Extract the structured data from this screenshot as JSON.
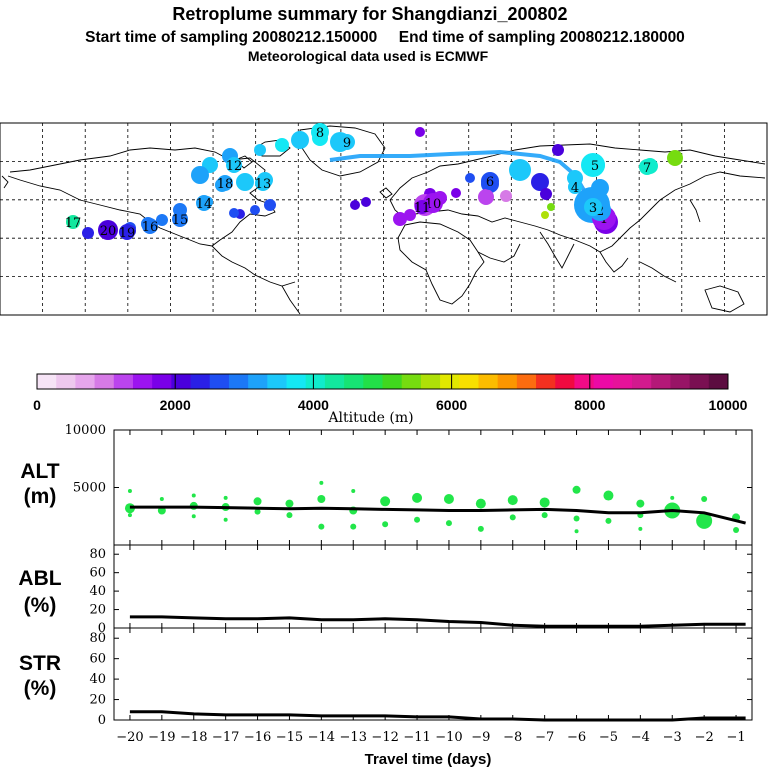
{
  "header": {
    "title": "Retroplume summary for Shangdianzi_200802",
    "sampling_line": "Start time of sampling 20080212.150000     End time of sampling 20080212.180000",
    "met_line": "Meteorological data used is ECMWF"
  },
  "colorbar": {
    "label": "Altitude (m)",
    "tick_labels": [
      "0",
      "2000",
      "4000",
      "6000",
      "8000",
      "10000"
    ],
    "colors": [
      "#f6e4f6",
      "#eec8ee",
      "#e6a6ec",
      "#d67ae6",
      "#bb44ee",
      "#9c14f0",
      "#7a00e8",
      "#4a00dc",
      "#2a20e6",
      "#1f4ef2",
      "#1c78f6",
      "#1ea2fa",
      "#1cc8fa",
      "#14e8f4",
      "#10eccc",
      "#12e89e",
      "#16e474",
      "#22e048",
      "#40d81e",
      "#76dc10",
      "#aee008",
      "#e2e800",
      "#f8e000",
      "#fcbc00",
      "#fc9600",
      "#fc6c10",
      "#f43020",
      "#f00a40",
      "#f20a86",
      "#ec0aa6",
      "#e6129a",
      "#d21a8e",
      "#b41878",
      "#981466",
      "#7a1052",
      "#5c0c40"
    ]
  },
  "map": {
    "plume_markers": [
      {
        "label": "1"
      },
      {
        "label": "2"
      },
      {
        "label": "3"
      },
      {
        "label": "4"
      },
      {
        "label": "5"
      },
      {
        "label": "6"
      },
      {
        "label": "7"
      },
      {
        "label": "8"
      },
      {
        "label": "9"
      },
      {
        "label": "10"
      },
      {
        "label": "11"
      },
      {
        "label": "12"
      },
      {
        "label": "13"
      },
      {
        "label": "14"
      },
      {
        "label": "15"
      },
      {
        "label": "16"
      },
      {
        "label": "17"
      },
      {
        "label": "18"
      },
      {
        "label": "19"
      },
      {
        "label": "20"
      }
    ]
  },
  "chart_data": [
    {
      "type": "scatter",
      "panel": "ALT",
      "ylabel_lines": [
        "ALT",
        "(m)"
      ],
      "ylim": [
        0,
        10000
      ],
      "yticks": [
        5000,
        10000
      ],
      "xlim": [
        -20,
        -0.5
      ],
      "x": [
        -20,
        -19,
        -18,
        -17,
        -16,
        -15,
        -14,
        -13,
        -12,
        -11,
        -10,
        -9,
        -8,
        -7,
        -6,
        -5,
        -4,
        -3,
        -2,
        -1
      ],
      "mean_line": [
        3300,
        3300,
        3300,
        3250,
        3200,
        3150,
        3200,
        3150,
        3100,
        3050,
        3000,
        3000,
        3050,
        3100,
        3000,
        2800,
        2800,
        3000,
        2800,
        1900
      ],
      "cluster_points": [
        {
          "x": -20,
          "y": 3200,
          "s": 5
        },
        {
          "x": -20,
          "y": 4700,
          "s": 2
        },
        {
          "x": -20,
          "y": 2600,
          "s": 2
        },
        {
          "x": -19,
          "y": 3000,
          "s": 4
        },
        {
          "x": -19,
          "y": 4000,
          "s": 2
        },
        {
          "x": -18,
          "y": 3400,
          "s": 4
        },
        {
          "x": -18,
          "y": 2500,
          "s": 2
        },
        {
          "x": -18,
          "y": 4300,
          "s": 2
        },
        {
          "x": -17,
          "y": 3300,
          "s": 4
        },
        {
          "x": -17,
          "y": 2200,
          "s": 2
        },
        {
          "x": -17,
          "y": 4100,
          "s": 2
        },
        {
          "x": -16,
          "y": 3800,
          "s": 4
        },
        {
          "x": -16,
          "y": 2900,
          "s": 3
        },
        {
          "x": -15,
          "y": 3600,
          "s": 4
        },
        {
          "x": -15,
          "y": 2600,
          "s": 3
        },
        {
          "x": -14,
          "y": 4000,
          "s": 4
        },
        {
          "x": -14,
          "y": 1600,
          "s": 3
        },
        {
          "x": -14,
          "y": 5400,
          "s": 2
        },
        {
          "x": -13,
          "y": 3000,
          "s": 4
        },
        {
          "x": -13,
          "y": 1600,
          "s": 3
        },
        {
          "x": -13,
          "y": 4700,
          "s": 2
        },
        {
          "x": -12,
          "y": 3800,
          "s": 5
        },
        {
          "x": -12,
          "y": 1800,
          "s": 3
        },
        {
          "x": -11,
          "y": 4100,
          "s": 5
        },
        {
          "x": -11,
          "y": 2200,
          "s": 3
        },
        {
          "x": -10,
          "y": 4000,
          "s": 5
        },
        {
          "x": -10,
          "y": 1900,
          "s": 3
        },
        {
          "x": -9,
          "y": 3600,
          "s": 5
        },
        {
          "x": -9,
          "y": 1400,
          "s": 3
        },
        {
          "x": -8,
          "y": 3900,
          "s": 5
        },
        {
          "x": -8,
          "y": 2400,
          "s": 3
        },
        {
          "x": -7,
          "y": 3700,
          "s": 5
        },
        {
          "x": -7,
          "y": 2600,
          "s": 3
        },
        {
          "x": -6,
          "y": 4800,
          "s": 4
        },
        {
          "x": -6,
          "y": 2300,
          "s": 3
        },
        {
          "x": -6,
          "y": 1200,
          "s": 2
        },
        {
          "x": -5,
          "y": 4300,
          "s": 5
        },
        {
          "x": -5,
          "y": 2100,
          "s": 3
        },
        {
          "x": -4,
          "y": 3600,
          "s": 4
        },
        {
          "x": -4,
          "y": 2600,
          "s": 3
        },
        {
          "x": -4,
          "y": 1400,
          "s": 2
        },
        {
          "x": -3,
          "y": 3000,
          "s": 8
        },
        {
          "x": -3,
          "y": 4100,
          "s": 2
        },
        {
          "x": -2,
          "y": 2100,
          "s": 8
        },
        {
          "x": -2,
          "y": 4000,
          "s": 3
        },
        {
          "x": -1,
          "y": 2400,
          "s": 4
        },
        {
          "x": -1,
          "y": 1300,
          "s": 3
        }
      ]
    },
    {
      "type": "line",
      "panel": "ABL",
      "ylabel_lines": [
        "ABL",
        "(%)"
      ],
      "ylim": [
        0,
        90
      ],
      "yticks": [
        0,
        20,
        40,
        60,
        80
      ],
      "xlim": [
        -20,
        -0.5
      ],
      "x": [
        -20,
        -19,
        -18,
        -17,
        -16,
        -15,
        -14,
        -13,
        -12,
        -11,
        -10,
        -9,
        -8,
        -7,
        -6,
        -5,
        -4,
        -3,
        -2,
        -1
      ],
      "values": [
        12,
        12,
        11,
        10,
        10,
        11,
        9,
        9,
        10,
        9,
        7,
        6,
        3,
        2,
        2,
        2,
        2,
        3,
        4,
        4
      ]
    },
    {
      "type": "line",
      "panel": "STR",
      "ylabel_lines": [
        "STR",
        "(%)"
      ],
      "ylim": [
        0,
        90
      ],
      "yticks": [
        0,
        20,
        40,
        60,
        80
      ],
      "xlim": [
        -20,
        -0.5
      ],
      "x": [
        -20,
        -19,
        -18,
        -17,
        -16,
        -15,
        -14,
        -13,
        -12,
        -11,
        -10,
        -9,
        -8,
        -7,
        -6,
        -5,
        -4,
        -3,
        -2,
        -1
      ],
      "values": [
        8,
        8,
        6,
        5,
        5,
        5,
        4,
        4,
        4,
        3,
        3,
        1,
        1,
        0,
        0,
        0,
        0,
        0,
        2,
        2
      ],
      "xlabel": "Travel time (days)",
      "xtick_labels": [
        "−20",
        "−19",
        "−18",
        "−17",
        "−16",
        "−15",
        "−14",
        "−13",
        "−12",
        "−11",
        "−10",
        "−9",
        "−8",
        "−7",
        "−6",
        "−5",
        "−4",
        "−3",
        "−2",
        "−1"
      ]
    }
  ]
}
